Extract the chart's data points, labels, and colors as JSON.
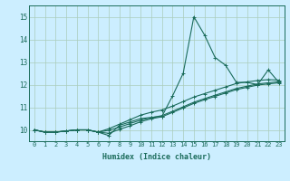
{
  "title": "",
  "xlabel": "Humidex (Indice chaleur)",
  "background_color": "#cceeff",
  "grid_color": "#aaccbb",
  "line_color": "#1a6b5a",
  "xlim": [
    -0.5,
    23.5
  ],
  "ylim": [
    9.5,
    15.5
  ],
  "xticks": [
    0,
    1,
    2,
    3,
    4,
    5,
    6,
    7,
    8,
    9,
    10,
    11,
    12,
    13,
    14,
    15,
    16,
    17,
    18,
    19,
    20,
    21,
    22,
    23
  ],
  "yticks": [
    10,
    11,
    12,
    13,
    14,
    15
  ],
  "line1_x": [
    0,
    1,
    2,
    3,
    4,
    5,
    6,
    7,
    8,
    9,
    10,
    11,
    12,
    13,
    14,
    15,
    16,
    17,
    18,
    19,
    20,
    21,
    22,
    23
  ],
  "line1_y": [
    10.0,
    9.9,
    9.9,
    9.95,
    10.0,
    10.0,
    9.9,
    9.75,
    10.2,
    10.35,
    10.5,
    10.55,
    10.6,
    11.5,
    12.5,
    15.0,
    14.2,
    13.2,
    12.85,
    12.1,
    12.1,
    12.0,
    12.65,
    12.1
  ],
  "line2_x": [
    0,
    1,
    2,
    3,
    4,
    5,
    6,
    7,
    8,
    9,
    10,
    11,
    12,
    13,
    14,
    15,
    16,
    17,
    18,
    19,
    20,
    21,
    22,
    23
  ],
  "line2_y": [
    10.0,
    9.9,
    9.9,
    9.95,
    10.0,
    10.0,
    9.9,
    10.05,
    10.25,
    10.45,
    10.65,
    10.78,
    10.88,
    11.05,
    11.25,
    11.45,
    11.6,
    11.75,
    11.9,
    12.05,
    12.12,
    12.18,
    12.22,
    12.2
  ],
  "line3_x": [
    0,
    1,
    2,
    3,
    4,
    5,
    6,
    7,
    8,
    9,
    10,
    11,
    12,
    13,
    14,
    15,
    16,
    17,
    18,
    19,
    20,
    21,
    22,
    23
  ],
  "line3_y": [
    10.0,
    9.9,
    9.9,
    9.95,
    10.0,
    10.0,
    9.9,
    9.98,
    10.12,
    10.28,
    10.43,
    10.54,
    10.63,
    10.82,
    11.02,
    11.22,
    11.38,
    11.53,
    11.68,
    11.83,
    11.93,
    12.03,
    12.08,
    12.13
  ],
  "line4_x": [
    0,
    1,
    2,
    3,
    4,
    5,
    6,
    7,
    8,
    9,
    10,
    11,
    12,
    13,
    14,
    15,
    16,
    17,
    18,
    19,
    20,
    21,
    22,
    23
  ],
  "line4_y": [
    10.0,
    9.9,
    9.9,
    9.95,
    10.0,
    10.0,
    9.9,
    9.85,
    10.02,
    10.18,
    10.36,
    10.49,
    10.58,
    10.77,
    10.97,
    11.17,
    11.33,
    11.48,
    11.63,
    11.78,
    11.88,
    11.98,
    12.03,
    12.08
  ],
  "xlabel_fontsize": 6.0,
  "tick_fontsize": 5.0
}
